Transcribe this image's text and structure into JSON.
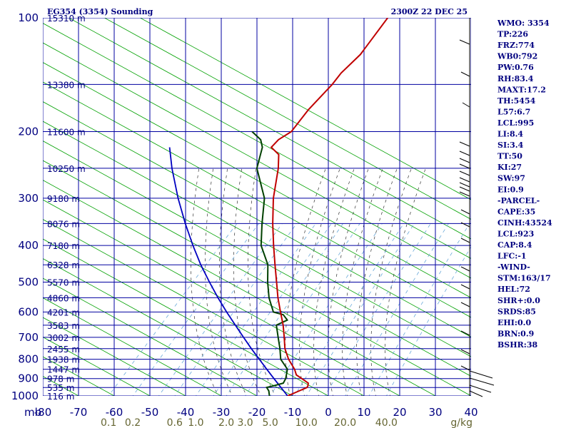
{
  "header": {
    "station": "EG354 (3354) Sounding",
    "time": "2300Z 22 DEC 25"
  },
  "indices": [
    "WMO: 3354",
    "TP:226",
    "FRZ:774",
    "WB0:792",
    "PW:0.76",
    "RH:83.4",
    "MAXT:17.2",
    "TH:5454",
    "L57:6.7",
    "LCL:995",
    "LI:8.4",
    "SI:3.4",
    "TT:50",
    "KI:27",
    "SW:97",
    "EI:0.9",
    "-PARCEL-",
    "CAPE:35",
    "CINH:43524",
    "LCL:923",
    "CAP:8.4",
    "LFC:-1",
    "-WIND-",
    "STM:163/17",
    "HEL:72",
    "SHR+:0.0",
    "SRDS:85",
    "EHI:0.0",
    "BRN:0.9",
    "BSHR:38"
  ],
  "colors": {
    "grid": "#0000a0",
    "dry_adiabat": "#00a000",
    "moist_adiabat": "#333333",
    "mixing_ratio": "#6aa9d9",
    "temperature": "#c00000",
    "dewpoint": "#004000",
    "parcel": "#0000c0"
  },
  "chart_data": {
    "type": "skew-t",
    "y_unit": "mb",
    "pressure_levels": [
      {
        "p": 100,
        "label": "100",
        "height": "15310 m"
      },
      {
        "p": 150,
        "label": "",
        "height": "13380 m"
      },
      {
        "p": 200,
        "label": "200",
        "height": "11600 m"
      },
      {
        "p": 250,
        "label": "",
        "height": "10250 m"
      },
      {
        "p": 300,
        "label": "300",
        "height": "9180 m"
      },
      {
        "p": 350,
        "label": "",
        "height": "8076 m"
      },
      {
        "p": 400,
        "label": "400",
        "height": "7180 m"
      },
      {
        "p": 450,
        "label": "",
        "height": "6328 m"
      },
      {
        "p": 500,
        "label": "500",
        "height": "5570 m"
      },
      {
        "p": 550,
        "label": "",
        "height": "4860 m"
      },
      {
        "p": 600,
        "label": "600",
        "height": "4201 m"
      },
      {
        "p": 650,
        "label": "",
        "height": "3583 m"
      },
      {
        "p": 700,
        "label": "700",
        "height": "3002 m"
      },
      {
        "p": 750,
        "label": "",
        "height": "2455 m"
      },
      {
        "p": 800,
        "label": "800",
        "height": "1938 m"
      },
      {
        "p": 850,
        "label": "",
        "height": "1447 m"
      },
      {
        "p": 900,
        "label": "900",
        "height": "978 m"
      },
      {
        "p": 950,
        "label": "",
        "height": "535 m"
      },
      {
        "p": 1000,
        "label": "1000",
        "height": "116 m"
      }
    ],
    "x_ticks": [
      {
        "t": -80,
        "label": "-80"
      },
      {
        "t": -70,
        "label": "-70"
      },
      {
        "t": -60,
        "label": "-60"
      },
      {
        "t": -50,
        "label": "-50"
      },
      {
        "t": -40,
        "label": "-40"
      },
      {
        "t": -30,
        "label": "-30"
      },
      {
        "t": -20,
        "label": "-20"
      },
      {
        "t": -10,
        "label": "-10"
      },
      {
        "t": 0,
        "label": "0"
      },
      {
        "t": 10,
        "label": "10"
      },
      {
        "t": 20,
        "label": "20"
      },
      {
        "t": 30,
        "label": "30"
      },
      {
        "t": 40,
        "label": "40"
      }
    ],
    "mixing_ratio_labels": [
      {
        "w": 0.1,
        "label": "0.1"
      },
      {
        "w": 0.2,
        "label": "0.2"
      },
      {
        "w": 0.6,
        "label": "0.6"
      },
      {
        "w": 1.0,
        "label": "1.0"
      },
      {
        "w": 2.0,
        "label": "2.0"
      },
      {
        "w": 3.0,
        "label": "3.0"
      },
      {
        "w": 5.0,
        "label": "5.0"
      },
      {
        "w": 10.0,
        "label": "10.0"
      },
      {
        "w": 20.0,
        "label": "20.0"
      },
      {
        "w": 40.0,
        "label": "40.0"
      }
    ],
    "mixing_unit": "g/kg",
    "temperature": [
      {
        "p": 1000,
        "t": 8.6
      },
      {
        "p": 970,
        "t": 10.5
      },
      {
        "p": 950,
        "t": 11.8
      },
      {
        "p": 940,
        "t": 11.6
      },
      {
        "p": 925,
        "t": 11.0
      },
      {
        "p": 900,
        "t": 8.0
      },
      {
        "p": 880,
        "t": 5.5
      },
      {
        "p": 850,
        "t": 3.5
      },
      {
        "p": 800,
        "t": -0.8
      },
      {
        "p": 750,
        "t": -4.6
      },
      {
        "p": 700,
        "t": -7.8
      },
      {
        "p": 650,
        "t": -11.3
      },
      {
        "p": 600,
        "t": -15.5
      },
      {
        "p": 550,
        "t": -20.0
      },
      {
        "p": 500,
        "t": -24.5
      },
      {
        "p": 450,
        "t": -29.5
      },
      {
        "p": 400,
        "t": -35.0
      },
      {
        "p": 350,
        "t": -41.0
      },
      {
        "p": 300,
        "t": -47.5
      },
      {
        "p": 250,
        "t": -54.0
      },
      {
        "p": 230,
        "t": -57.5
      },
      {
        "p": 220,
        "t": -61.5
      },
      {
        "p": 210,
        "t": -61.5
      },
      {
        "p": 200,
        "t": -60.0
      },
      {
        "p": 175,
        "t": -61.0
      },
      {
        "p": 150,
        "t": -61.0
      },
      {
        "p": 140,
        "t": -61.5
      },
      {
        "p": 125,
        "t": -61.0
      },
      {
        "p": 100,
        "t": -63.0
      }
    ],
    "dewpoint": [
      {
        "p": 1000,
        "t": 3.5
      },
      {
        "p": 970,
        "t": 2.0
      },
      {
        "p": 950,
        "t": 0.5
      },
      {
        "p": 940,
        "t": 2.0
      },
      {
        "p": 925,
        "t": 4.0
      },
      {
        "p": 900,
        "t": 3.5
      },
      {
        "p": 850,
        "t": 1.5
      },
      {
        "p": 800,
        "t": -3.0
      },
      {
        "p": 750,
        "t": -6.0
      },
      {
        "p": 700,
        "t": -9.5
      },
      {
        "p": 650,
        "t": -13.2
      },
      {
        "p": 630,
        "t": -11.5
      },
      {
        "p": 610,
        "t": -14.0
      },
      {
        "p": 600,
        "t": -17.5
      },
      {
        "p": 550,
        "t": -22.5
      },
      {
        "p": 500,
        "t": -27.0
      },
      {
        "p": 450,
        "t": -31.5
      },
      {
        "p": 400,
        "t": -38.5
      },
      {
        "p": 350,
        "t": -44.0
      },
      {
        "p": 300,
        "t": -50.0
      },
      {
        "p": 250,
        "t": -60.0
      },
      {
        "p": 220,
        "t": -64.0
      },
      {
        "p": 210,
        "t": -66.5
      },
      {
        "p": 200,
        "t": -71.0
      }
    ],
    "parcel": [
      {
        "p": 1000,
        "t": 8.6
      },
      {
        "p": 950,
        "t": 4.5
      },
      {
        "p": 900,
        "t": 0.2
      },
      {
        "p": 850,
        "t": -4.3
      },
      {
        "p": 800,
        "t": -9.0
      },
      {
        "p": 750,
        "t": -14.0
      },
      {
        "p": 700,
        "t": -19.2
      },
      {
        "p": 650,
        "t": -24.7
      },
      {
        "p": 600,
        "t": -30.6
      },
      {
        "p": 550,
        "t": -36.8
      },
      {
        "p": 500,
        "t": -43.3
      },
      {
        "p": 450,
        "t": -50.3
      },
      {
        "p": 400,
        "t": -57.6
      },
      {
        "p": 350,
        "t": -65.5
      },
      {
        "p": 300,
        "t": -74.2
      },
      {
        "p": 250,
        "t": -83.8
      },
      {
        "p": 220,
        "t": -90.0
      }
    ]
  }
}
